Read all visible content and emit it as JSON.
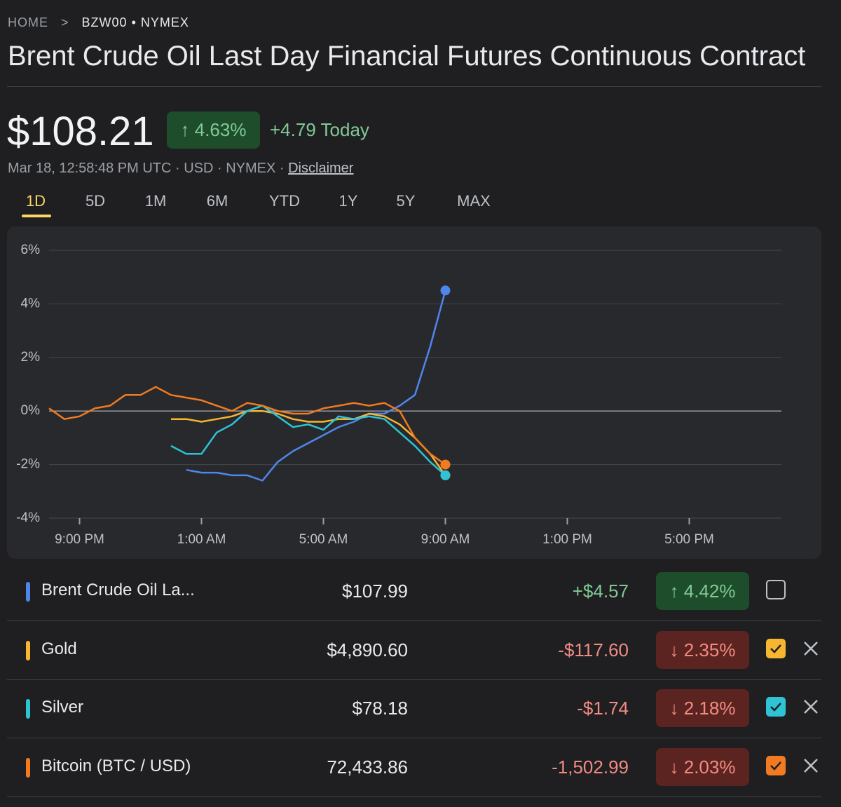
{
  "breadcrumb": {
    "home": "HOME",
    "symbol": "BZW00",
    "exchange": "NYMEX"
  },
  "header": {
    "title": "Brent Crude Oil Last Day Financial Futures Continuous Contract",
    "price": "$108.21",
    "change_percent": "↑ 4.63%",
    "change_today": "+4.79 Today",
    "meta": "Mar 18, 12:58:48 PM UTC · USD · NYMEX · ",
    "disclaimer": "Disclaimer"
  },
  "tabs": [
    "1D",
    "5D",
    "1M",
    "6M",
    "YTD",
    "1Y",
    "5Y",
    "MAX"
  ],
  "chart_data": {
    "type": "line",
    "categories": [
      null,
      null,
      "9:00 PM",
      null,
      null,
      null,
      null,
      null,
      null,
      null,
      "1:00 AM",
      null,
      null,
      null,
      null,
      null,
      null,
      null,
      "5:00 AM",
      null,
      null,
      null,
      null,
      null,
      null,
      null,
      "9:00 AM",
      null,
      null,
      null,
      null,
      null,
      null,
      null,
      "1:00 PM",
      null,
      null,
      null,
      null,
      null,
      null,
      null,
      "5:00 PM",
      null,
      null,
      null,
      null,
      null
    ],
    "ylim": [
      -4,
      6
    ],
    "yticks": [
      {
        "value": 6,
        "label": "6%"
      },
      {
        "value": 4,
        "label": "4%"
      },
      {
        "value": 2,
        "label": "2%"
      },
      {
        "value": 0,
        "label": "0%"
      },
      {
        "value": -2,
        "label": "-2%"
      },
      {
        "value": -4,
        "label": "-4%"
      }
    ],
    "grid": true,
    "series": [
      {
        "name": "Brent Crude Oil La...",
        "color": "#4f86ec",
        "values": [
          null,
          null,
          null,
          null,
          null,
          null,
          null,
          null,
          null,
          -2.2,
          -2.3,
          -2.3,
          -2.4,
          -2.4,
          -2.6,
          -1.9,
          -1.5,
          -1.2,
          -0.9,
          -0.6,
          -0.4,
          -0.1,
          -0.1,
          0.2,
          0.6,
          2.4,
          4.5,
          null,
          null,
          null,
          null,
          null,
          null,
          null,
          null,
          null,
          null,
          null,
          null,
          null,
          null,
          null,
          null,
          null,
          null,
          null,
          null,
          null
        ]
      },
      {
        "name": "Gold",
        "color": "#f6b62f",
        "values": [
          null,
          null,
          null,
          null,
          null,
          null,
          null,
          null,
          -0.3,
          -0.3,
          -0.4,
          -0.3,
          -0.2,
          0.0,
          0.0,
          -0.1,
          -0.3,
          -0.4,
          -0.4,
          -0.3,
          -0.3,
          -0.1,
          -0.2,
          -0.5,
          -1.0,
          -1.6,
          -2.4,
          null,
          null,
          null,
          null,
          null,
          null,
          null,
          null,
          null,
          null,
          null,
          null,
          null,
          null,
          null,
          null,
          null,
          null,
          null,
          null,
          null
        ]
      },
      {
        "name": "Silver",
        "color": "#2ec4d6",
        "values": [
          null,
          null,
          null,
          null,
          null,
          null,
          null,
          null,
          -1.3,
          -1.6,
          -1.6,
          -0.8,
          -0.5,
          0.0,
          0.2,
          -0.2,
          -0.6,
          -0.5,
          -0.7,
          -0.2,
          -0.3,
          -0.2,
          -0.3,
          -0.8,
          -1.3,
          -1.9,
          -2.4,
          null,
          null,
          null,
          null,
          null,
          null,
          null,
          null,
          null,
          null,
          null,
          null,
          null,
          null,
          null,
          null,
          null,
          null,
          null,
          null,
          null
        ]
      },
      {
        "name": "Bitcoin (BTC / USD)",
        "color": "#f27a21",
        "values": [
          0.1,
          -0.3,
          -0.2,
          0.1,
          0.2,
          0.6,
          0.6,
          0.9,
          0.6,
          0.5,
          0.4,
          0.2,
          0.0,
          0.3,
          0.2,
          0.0,
          -0.1,
          -0.1,
          0.1,
          0.2,
          0.3,
          0.2,
          0.3,
          0.0,
          -1.0,
          -1.6,
          -2.0,
          null,
          null,
          null,
          null,
          null,
          null,
          null,
          null,
          null,
          null,
          null,
          null,
          null,
          null,
          null,
          null,
          null,
          null,
          null,
          null,
          null
        ]
      }
    ]
  },
  "comparison": {
    "rows": [
      {
        "price": "$107.99",
        "change": "+$4.57",
        "change_percent": "↑ 4.42%",
        "color": "#81c995",
        "badge_color": "#1e4d2b",
        "checked": false
      },
      {
        "price": "$4,890.60",
        "change": "-$117.60",
        "change_percent": "↓ 2.35%",
        "color": "#f28b82",
        "badge_color": "#5c2421",
        "checked": true
      },
      {
        "price": "$78.18",
        "change": "-$1.74",
        "change_percent": "↓ 2.18%",
        "color": "#f28b82",
        "badge_color": "#5c2421",
        "checked": true
      },
      {
        "price": "72,433.86",
        "change": "-1,502.99",
        "change_percent": "↓ 2.03%",
        "color": "#f28b82",
        "badge_color": "#5c2421",
        "checked": true
      }
    ]
  }
}
